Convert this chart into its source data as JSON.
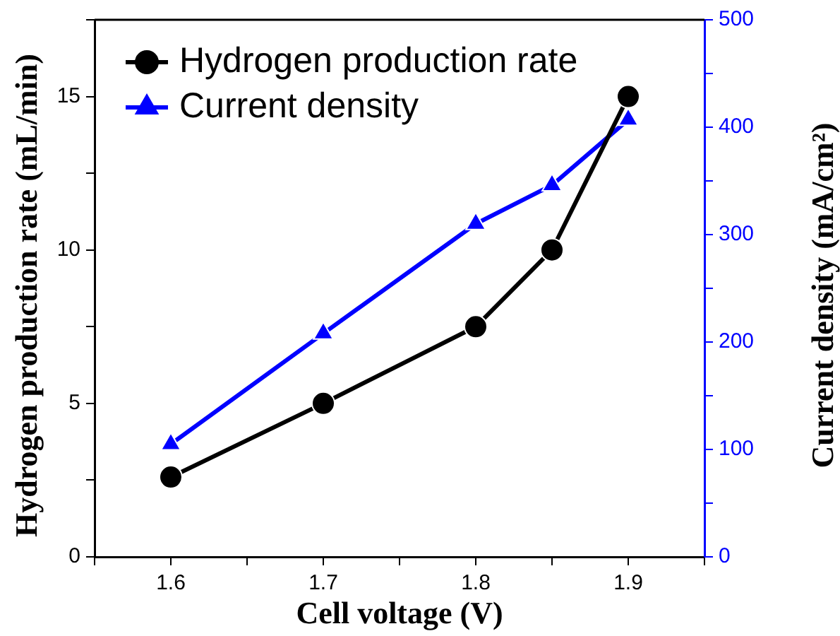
{
  "chart_data": {
    "type": "line",
    "xlabel": "Cell voltage (V)",
    "ylabel": "Hydrogen production rate (mL/min)",
    "y2label": "Current density (mA/cm²)",
    "x": [
      1.6,
      1.7,
      1.8,
      1.85,
      1.9
    ],
    "xlim": [
      1.55,
      1.95
    ],
    "xticks": [
      {
        "value": 1.55,
        "label": null
      },
      1.6,
      {
        "value": 1.65,
        "label": null
      },
      1.7,
      {
        "value": 1.75,
        "label": null
      },
      1.8,
      {
        "value": 1.85,
        "label": null
      },
      1.9,
      {
        "value": 1.95,
        "label": null
      }
    ],
    "ylim": [
      0,
      17.5
    ],
    "yticks": [
      0,
      {
        "value": 2.5,
        "label": null
      },
      5,
      {
        "value": 7.5,
        "label": null
      },
      10,
      {
        "value": 12.5,
        "label": null
      },
      15,
      {
        "value": 17.5,
        "label": null
      }
    ],
    "y2lim": [
      0,
      500
    ],
    "y2ticks": [
      0,
      {
        "value": 50,
        "label": null
      },
      100,
      {
        "value": 150,
        "label": null
      },
      200,
      {
        "value": 250,
        "label": null
      },
      300,
      {
        "value": 350,
        "label": null
      },
      400,
      {
        "value": 450,
        "label": null
      },
      500
    ],
    "series": [
      {
        "name": "Hydrogen production rate",
        "color": "#000000",
        "marker": "circle",
        "values": [
          2.6,
          5,
          7.5,
          10,
          15
        ]
      },
      {
        "name": "Current density",
        "color": "#0000ff",
        "marker": "triangle",
        "axis": "y2",
        "values": [
          105,
          208,
          310,
          346,
          407
        ]
      }
    ],
    "legend": "top left",
    "grid": false
  }
}
